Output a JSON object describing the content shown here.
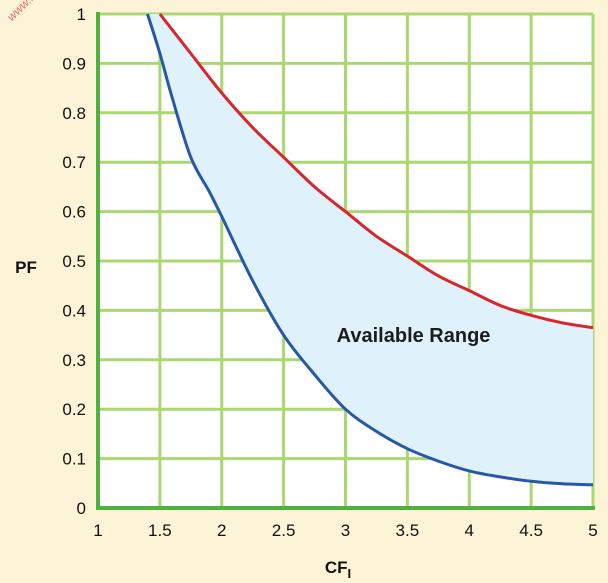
{
  "watermark": "www.n",
  "chart_data": {
    "type": "area",
    "title": "",
    "xlabel": "CF",
    "xlabel_subscript": "I",
    "ylabel": "PF",
    "xlim": [
      1,
      5
    ],
    "ylim": [
      0,
      1
    ],
    "x_ticks": [
      1,
      1.5,
      2,
      2.5,
      3,
      3.5,
      4,
      4.5,
      5
    ],
    "x_tick_labels": [
      "1",
      "1.5",
      "2",
      "2.5",
      "3",
      "3.5",
      "4",
      "4.5",
      "5"
    ],
    "y_ticks": [
      0,
      0.1,
      0.2,
      0.3,
      0.4,
      0.5,
      0.6,
      0.7,
      0.8,
      0.9,
      1
    ],
    "y_tick_labels": [
      "0",
      "0.1",
      "0.2",
      "0.3",
      "0.4",
      "0.5",
      "0.6",
      "0.7",
      "0.8",
      "0.9",
      "1"
    ],
    "grid": true,
    "annotation": {
      "text": "Available Range",
      "x": 3.55,
      "y": 0.35
    },
    "colors": {
      "plot_background": "#ffffff",
      "grid": "#a8d86f",
      "axis": "#4db23e",
      "fill": "#dff1fb",
      "upper": "#d8262e",
      "lower": "#2757a8"
    },
    "series": [
      {
        "role": "upper",
        "x": [
          1.5,
          1.75,
          2.0,
          2.25,
          2.5,
          2.75,
          3.0,
          3.25,
          3.5,
          3.75,
          4.0,
          4.25,
          4.5,
          4.75,
          5.0
        ],
        "y": [
          1.0,
          0.92,
          0.84,
          0.77,
          0.71,
          0.65,
          0.6,
          0.55,
          0.51,
          0.47,
          0.44,
          0.41,
          0.39,
          0.375,
          0.365
        ]
      },
      {
        "role": "lower",
        "x": [
          1.4,
          1.5,
          1.6,
          1.75,
          1.9,
          2.0,
          2.25,
          2.5,
          2.75,
          3.0,
          3.25,
          3.5,
          3.75,
          4.0,
          4.25,
          4.5,
          4.75,
          5.0
        ],
        "y": [
          1.0,
          0.92,
          0.83,
          0.71,
          0.64,
          0.59,
          0.46,
          0.35,
          0.27,
          0.2,
          0.155,
          0.12,
          0.095,
          0.075,
          0.063,
          0.054,
          0.049,
          0.047
        ]
      }
    ]
  }
}
